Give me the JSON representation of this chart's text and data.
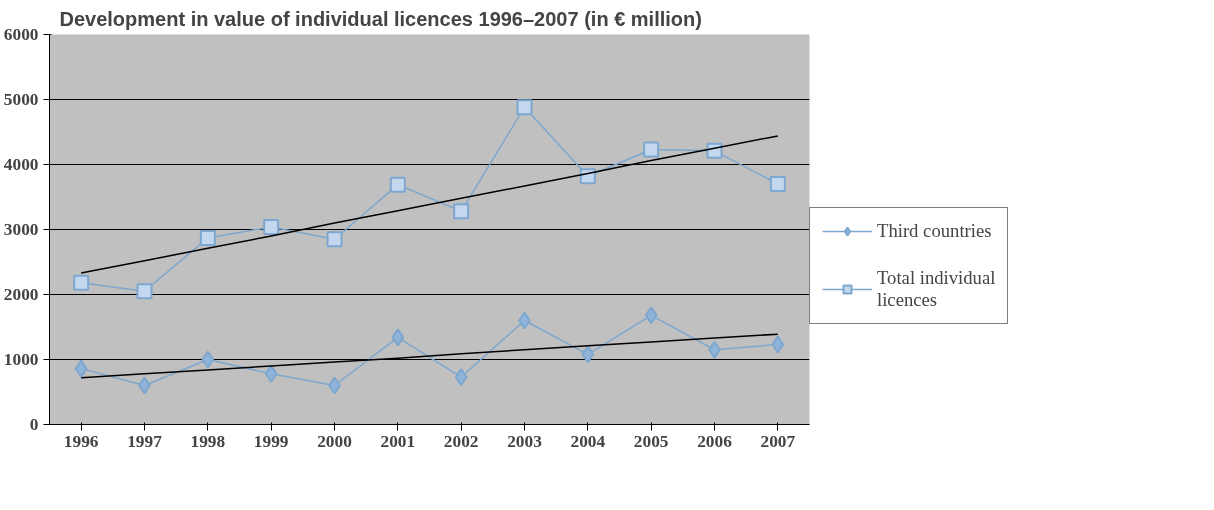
{
  "chart_data": {
    "type": "line",
    "title": "Development in value of individual licences 1996–2007 (in € million)",
    "categories": [
      "1996",
      "1997",
      "1998",
      "1999",
      "2000",
      "2001",
      "2002",
      "2003",
      "2004",
      "2005",
      "2006",
      "2007"
    ],
    "series": [
      {
        "name": "Third countries",
        "color": "#7da7ce",
        "marker": "diamond",
        "values": [
          860,
          600,
          1000,
          780,
          600,
          1340,
          730,
          1600,
          1080,
          1680,
          1150,
          1230
        ]
      },
      {
        "name": "Total individual licences",
        "color": "#7da7ce",
        "marker": "square",
        "values": [
          2180,
          2050,
          2870,
          3040,
          2850,
          3690,
          3280,
          4880,
          3820,
          4230,
          4210,
          3700
        ]
      },
      {
        "type": "line",
        "color": "#000000",
        "marker": "none",
        "values": [
          720,
          780,
          840,
          900,
          960,
          1020,
          1090,
          1150,
          1210,
          1270,
          1330,
          1390
        ]
      },
      {
        "type": "line",
        "color": "#000000",
        "marker": "none",
        "values": [
          2330,
          2520,
          2710,
          2900,
          3100,
          3290,
          3480,
          3670,
          3860,
          4060,
          4250,
          4440
        ]
      }
    ],
    "ylim": [
      0,
      6000
    ],
    "yticks": [
      0,
      1000,
      2000,
      3000,
      4000,
      5000,
      6000
    ],
    "grid": "y",
    "legend": "right"
  }
}
